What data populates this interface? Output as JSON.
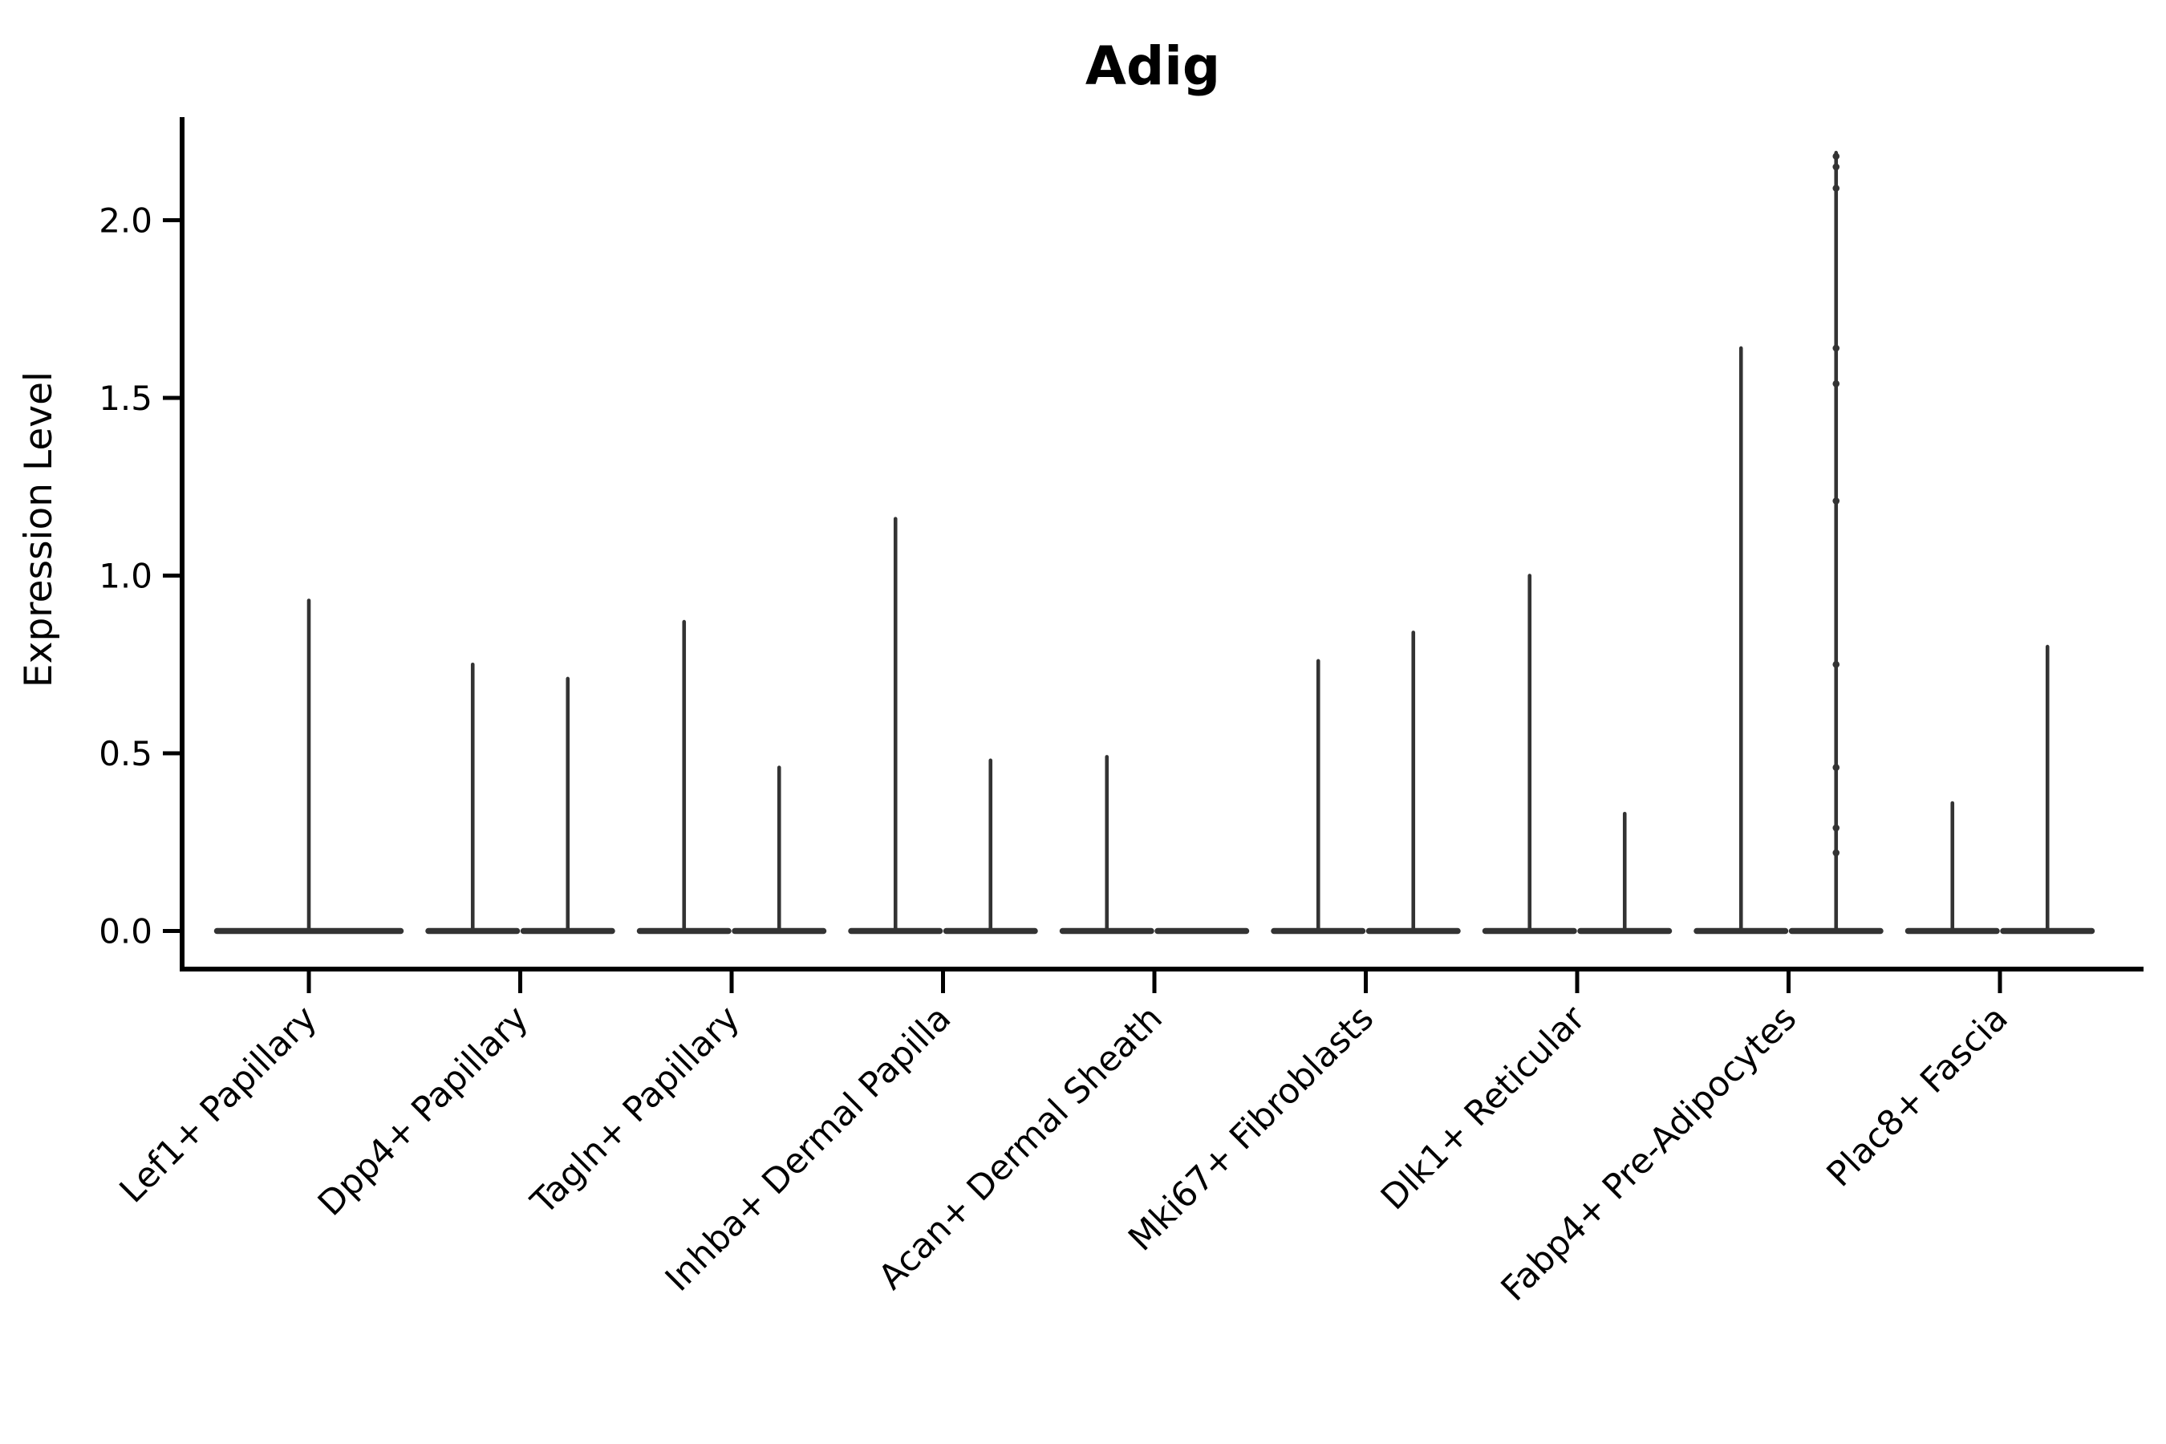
{
  "chart_data": {
    "type": "violin",
    "title": "Adig",
    "xlabel": "",
    "ylabel": "Expression Level",
    "ylim": [
      -0.1,
      2.29
    ],
    "yticks": [
      0.0,
      0.5,
      1.0,
      1.5,
      2.0
    ],
    "ytick_labels": [
      "0.0",
      "0.5",
      "1.0",
      "1.5",
      "2.0"
    ],
    "grid": false,
    "legend": null,
    "description": "Single-cell gene expression violin plot for gene Adig; violins are extremely thin spikes rising from a flat base at expression 0. Most categories contain two side-by-side violins.",
    "categories": [
      {
        "label": "Lef1+ Papillary",
        "violins": [
          {
            "position": "center",
            "rel_width": 1.0,
            "max": 0.93
          }
        ]
      },
      {
        "label": "Dpp4+ Papillary",
        "violins": [
          {
            "position": "left",
            "rel_width": 0.5,
            "max": 0.75
          },
          {
            "position": "right",
            "rel_width": 0.5,
            "max": 0.71
          }
        ]
      },
      {
        "label": "Tagln+ Papillary",
        "violins": [
          {
            "position": "left",
            "rel_width": 0.5,
            "max": 0.87
          },
          {
            "position": "right",
            "rel_width": 0.5,
            "max": 0.46
          }
        ]
      },
      {
        "label": "Inhba+ Dermal Papilla",
        "violins": [
          {
            "position": "left",
            "rel_width": 0.5,
            "max": 1.16
          },
          {
            "position": "right",
            "rel_width": 0.5,
            "max": 0.48
          }
        ]
      },
      {
        "label": "Acan+ Dermal Sheath",
        "violins": [
          {
            "position": "left",
            "rel_width": 0.5,
            "max": 0.49
          },
          {
            "position": "right",
            "rel_width": 0.5,
            "max": 0.0
          }
        ]
      },
      {
        "label": "Mki67+ Fibroblasts",
        "violins": [
          {
            "position": "left",
            "rel_width": 0.5,
            "max": 0.76
          },
          {
            "position": "right",
            "rel_width": 0.5,
            "max": 0.84
          }
        ]
      },
      {
        "label": "Dlk1+ Reticular",
        "violins": [
          {
            "position": "left",
            "rel_width": 0.5,
            "max": 1.0
          },
          {
            "position": "right",
            "rel_width": 0.5,
            "max": 0.33
          }
        ]
      },
      {
        "label": "Fabp4+ Pre-Adipocytes",
        "violins": [
          {
            "position": "left",
            "rel_width": 0.5,
            "max": 1.64
          },
          {
            "position": "right",
            "rel_width": 0.5,
            "max": 2.19,
            "points": [
              2.18,
              2.15,
              2.09,
              1.64,
              1.54,
              1.21,
              0.75,
              0.46,
              0.29,
              0.22
            ]
          }
        ]
      },
      {
        "label": "Plac8+ Fascia",
        "violins": [
          {
            "position": "left",
            "rel_width": 0.5,
            "max": 0.36
          },
          {
            "position": "right",
            "rel_width": 0.5,
            "max": 0.8
          }
        ]
      }
    ]
  },
  "style": {
    "background": "#ffffff",
    "axis_color": "#000000",
    "text_color": "#000000",
    "violin_color": "#333333",
    "point_color": "#333333"
  }
}
